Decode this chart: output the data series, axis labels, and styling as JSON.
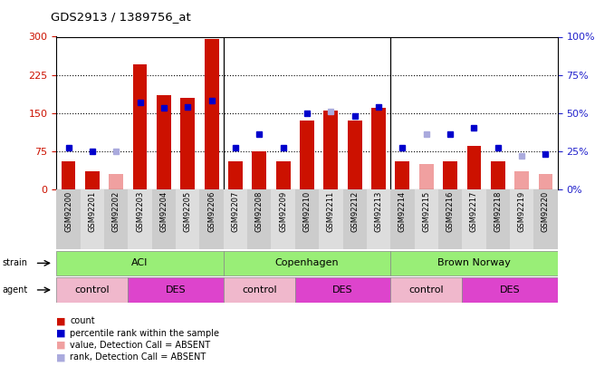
{
  "title": "GDS2913 / 1389756_at",
  "samples": [
    "GSM92200",
    "GSM92201",
    "GSM92202",
    "GSM92203",
    "GSM92204",
    "GSM92205",
    "GSM92206",
    "GSM92207",
    "GSM92208",
    "GSM92209",
    "GSM92210",
    "GSM92211",
    "GSM92212",
    "GSM92213",
    "GSM92214",
    "GSM92215",
    "GSM92216",
    "GSM92217",
    "GSM92218",
    "GSM92219",
    "GSM92220"
  ],
  "count": [
    55,
    35,
    30,
    245,
    185,
    180,
    295,
    55,
    75,
    55,
    135,
    155,
    135,
    160,
    55,
    50,
    55,
    85,
    55,
    35,
    30
  ],
  "percentile": [
    27,
    25,
    25,
    57,
    53,
    54,
    58,
    27,
    36,
    27,
    50,
    51,
    48,
    54,
    27,
    36,
    36,
    40,
    27,
    22,
    23
  ],
  "absent_count": [
    false,
    false,
    true,
    false,
    false,
    false,
    false,
    false,
    false,
    false,
    false,
    false,
    false,
    false,
    false,
    true,
    false,
    false,
    false,
    true,
    true
  ],
  "absent_rank": [
    false,
    false,
    true,
    false,
    false,
    false,
    false,
    false,
    false,
    false,
    false,
    true,
    false,
    false,
    false,
    true,
    false,
    false,
    false,
    true,
    false
  ],
  "strain_groups": [
    {
      "label": "ACI",
      "start": 0,
      "end": 6
    },
    {
      "label": "Copenhagen",
      "start": 7,
      "end": 13
    },
    {
      "label": "Brown Norway",
      "start": 14,
      "end": 20
    }
  ],
  "agent_groups": [
    {
      "label": "control",
      "start": 0,
      "end": 2,
      "is_des": false
    },
    {
      "label": "DES",
      "start": 3,
      "end": 6,
      "is_des": true
    },
    {
      "label": "control",
      "start": 7,
      "end": 9,
      "is_des": false
    },
    {
      "label": "DES",
      "start": 10,
      "end": 13,
      "is_des": true
    },
    {
      "label": "control",
      "start": 14,
      "end": 16,
      "is_des": false
    },
    {
      "label": "DES",
      "start": 17,
      "end": 20,
      "is_des": true
    }
  ],
  "yticks_left": [
    0,
    75,
    150,
    225,
    300
  ],
  "yticks_right": [
    0,
    25,
    50,
    75,
    100
  ],
  "bar_color_present": "#cc1100",
  "bar_color_absent": "#f0a0a0",
  "dot_color_present": "#0000cc",
  "dot_color_absent": "#aaaadd",
  "strain_bg": "#99ee77",
  "control_bg": "#f0b8cc",
  "des_bg": "#dd44cc",
  "left_tick_color": "#cc1100",
  "right_tick_color": "#2222cc",
  "col_bg_even": "#cccccc",
  "col_bg_odd": "#dddddd"
}
